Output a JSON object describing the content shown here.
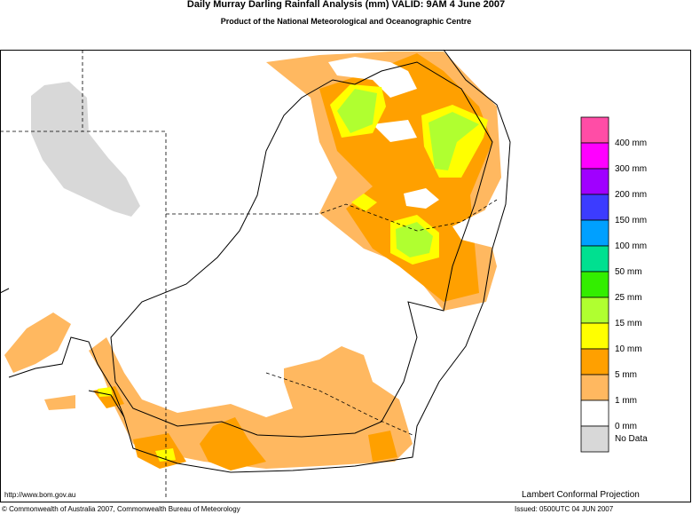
{
  "header": {
    "title": "Daily Murray Darling Rainfall Analysis (mm)  VALID: 9AM  4 June 2007",
    "subtitle": "Product of the National Meteorological and Oceanographic Centre"
  },
  "legend": {
    "colors": [
      "#ff4da6",
      "#ff00ff",
      "#a000ff",
      "#3c3cff",
      "#00a0ff",
      "#00e090",
      "#33ee00",
      "#b0ff30",
      "#ffff00",
      "#ffa000",
      "#ffb860",
      "#ffffff",
      "#d8d8d8"
    ],
    "labels": [
      "400 mm",
      "300 mm",
      "200 mm",
      "150 mm",
      "100 mm",
      "50 mm",
      "25 mm",
      "15 mm",
      "10 mm",
      "5 mm",
      "1 mm",
      "0 mm",
      "No Data"
    ]
  },
  "footer": {
    "url": "http://www.bom.gov.au",
    "projection": "Lambert Conformal Projection",
    "copyright": "© Commonwealth of Australia 2007, Commonwealth Bureau of Meteorology",
    "issued": "Issued: 0500UTC 04 JUN 2007"
  }
}
